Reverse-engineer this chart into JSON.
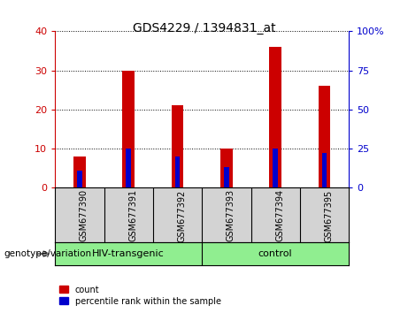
{
  "title": "GDS4229 / 1394831_at",
  "samples": [
    "GSM677390",
    "GSM677391",
    "GSM677392",
    "GSM677393",
    "GSM677394",
    "GSM677395"
  ],
  "count_values": [
    8,
    30,
    21,
    10,
    36,
    26
  ],
  "percentile_values": [
    11,
    25,
    20,
    13,
    25,
    22
  ],
  "count_color": "#cc0000",
  "percentile_color": "#0000cc",
  "ylim_left": [
    0,
    40
  ],
  "ylim_right": [
    0,
    100
  ],
  "left_ticks": [
    0,
    10,
    20,
    30,
    40
  ],
  "right_ticks": [
    0,
    25,
    50,
    75,
    100
  ],
  "left_tick_color": "#cc0000",
  "right_tick_color": "#0000cc",
  "groups": [
    {
      "label": "HIV-transgenic",
      "start": 0,
      "end": 3,
      "color": "#90ee90"
    },
    {
      "label": "control",
      "start": 3,
      "end": 6,
      "color": "#90ee90"
    }
  ],
  "group_label": "genotype/variation",
  "count_bar_width": 0.25,
  "percentile_bar_width": 0.1,
  "tick_label_area_color": "#d3d3d3",
  "legend_count_label": "count",
  "legend_percentile_label": "percentile rank within the sample"
}
